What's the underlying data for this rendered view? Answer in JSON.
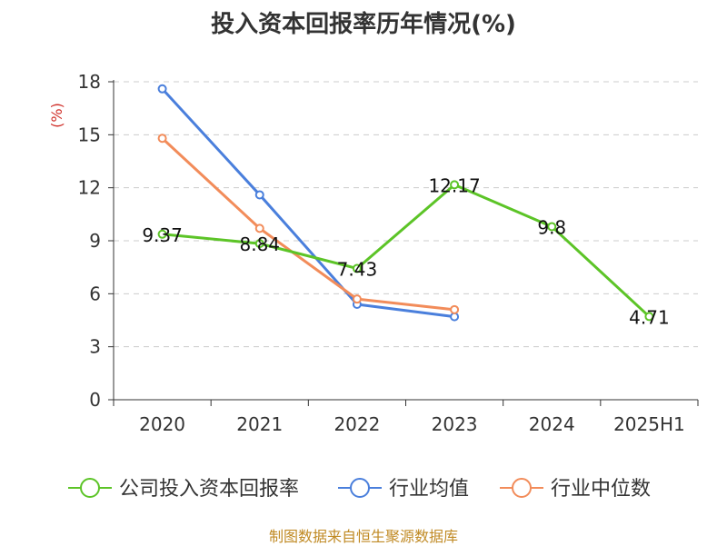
{
  "chart_data": {
    "type": "line",
    "title": "投入资本回报率历年情况(%)",
    "ylabel": "(%)",
    "xlabel": "",
    "categories": [
      "2020",
      "2021",
      "2022",
      "2023",
      "2024",
      "2025H1"
    ],
    "ylim": [
      0,
      18
    ],
    "yticks": [
      0,
      3,
      6,
      9,
      12,
      15,
      18
    ],
    "grid": true,
    "legend_position": "bottom",
    "series": [
      {
        "name": "公司投入资本回报率",
        "color": "#5cc427",
        "values": [
          9.37,
          8.84,
          7.43,
          12.17,
          9.8,
          4.71
        ],
        "labels": [
          "9.37",
          "8.84",
          "7.43",
          "12.17",
          "9.8",
          "4.71"
        ]
      },
      {
        "name": "行业均值",
        "color": "#4a7fdc",
        "values": [
          17.6,
          11.6,
          5.4,
          4.7,
          null,
          null
        ]
      },
      {
        "name": "行业中位数",
        "color": "#f28c5a",
        "values": [
          14.8,
          9.7,
          5.7,
          5.1,
          null,
          null
        ]
      }
    ],
    "unit_color": "#d0302a"
  },
  "footer": {
    "source": "制图数据来自恒生聚源数据库"
  }
}
